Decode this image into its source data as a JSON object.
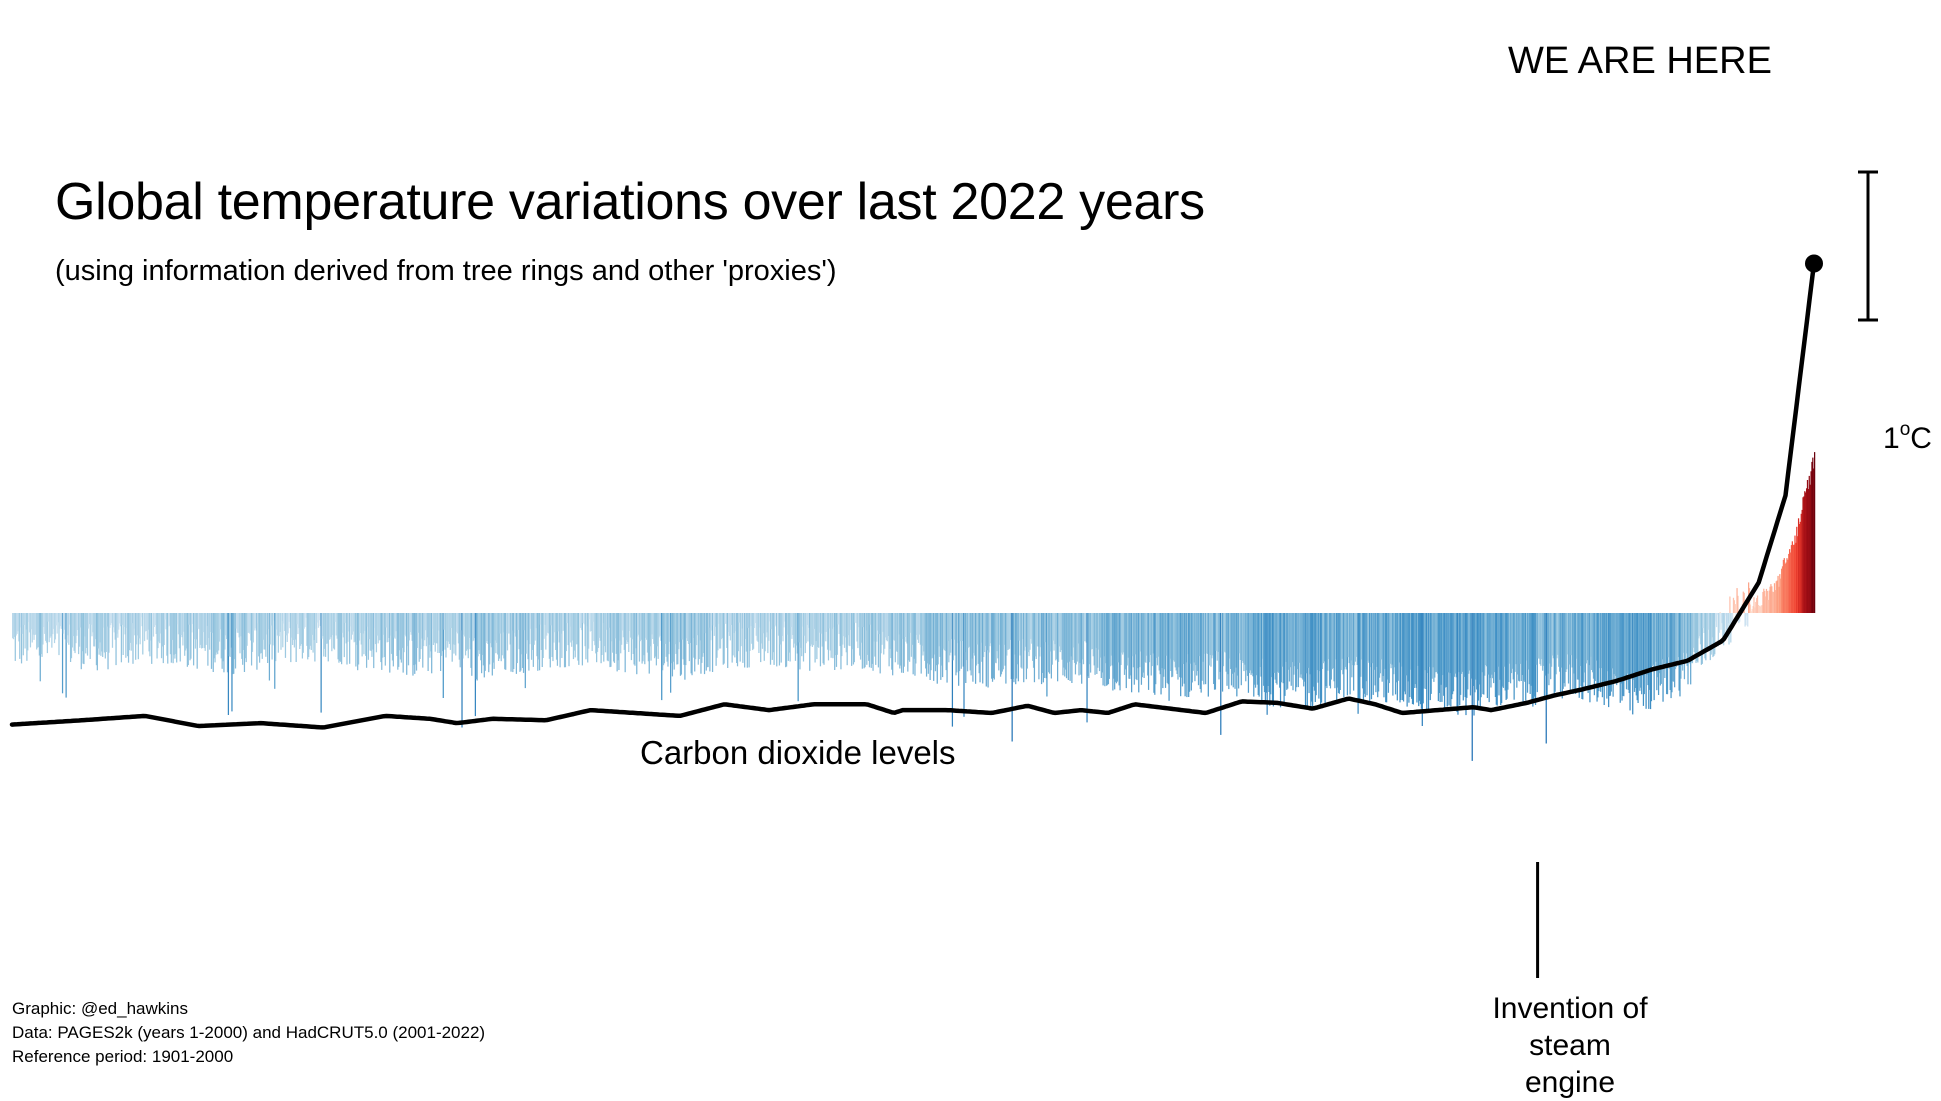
{
  "chart_data": {
    "type": "bar",
    "title": "Global temperature variations over last 2022 years",
    "subtitle": "(using information derived from tree rings and other 'proxies')",
    "x_range": [
      1,
      2022
    ],
    "reference_period": "1901-2000",
    "scale_bar": {
      "value": 1,
      "unit_label": "1",
      "unit_suffix": "C"
    },
    "temperature_anomaly_series": {
      "description": "annual global temperature anomaly (°C) relative to 1901-2000, sampled keyframes",
      "years": [
        1,
        50,
        100,
        150,
        200,
        250,
        300,
        350,
        400,
        450,
        500,
        530,
        550,
        600,
        650,
        700,
        750,
        800,
        850,
        900,
        950,
        1000,
        1050,
        1100,
        1150,
        1200,
        1250,
        1300,
        1350,
        1400,
        1450,
        1500,
        1550,
        1600,
        1640,
        1650,
        1700,
        1750,
        1800,
        1815,
        1850,
        1880,
        1900,
        1920,
        1940,
        1960,
        1980,
        1990,
        2000,
        2010,
        2022
      ],
      "values": [
        -0.22,
        -0.2,
        -0.24,
        -0.18,
        -0.22,
        -0.26,
        -0.2,
        -0.17,
        -0.22,
        -0.28,
        -0.23,
        -0.35,
        -0.28,
        -0.22,
        -0.2,
        -0.26,
        -0.3,
        -0.22,
        -0.2,
        -0.24,
        -0.22,
        -0.28,
        -0.33,
        -0.35,
        -0.32,
        -0.34,
        -0.4,
        -0.44,
        -0.4,
        -0.46,
        -0.5,
        -0.43,
        -0.48,
        -0.52,
        -0.55,
        -0.5,
        -0.48,
        -0.42,
        -0.5,
        -0.58,
        -0.46,
        -0.38,
        -0.22,
        -0.1,
        0.05,
        0.08,
        0.2,
        0.35,
        0.5,
        0.75,
        1.05
      ]
    },
    "co2_curve": {
      "label": "Carbon dioxide levels",
      "unit": "relative",
      "years": [
        1,
        80,
        150,
        210,
        280,
        350,
        420,
        470,
        500,
        540,
        600,
        650,
        700,
        750,
        800,
        850,
        900,
        930,
        960,
        990,
        1000,
        1050,
        1100,
        1140,
        1170,
        1200,
        1230,
        1260,
        1300,
        1340,
        1380,
        1420,
        1460,
        1500,
        1530,
        1560,
        1600,
        1640,
        1660,
        1700,
        1730,
        1760,
        1800,
        1840,
        1880,
        1920,
        1960,
        1990,
        2010,
        2022
      ],
      "values": [
        0.52,
        0.55,
        0.58,
        0.51,
        0.53,
        0.5,
        0.58,
        0.56,
        0.53,
        0.56,
        0.55,
        0.62,
        0.6,
        0.58,
        0.66,
        0.62,
        0.66,
        0.66,
        0.66,
        0.6,
        0.62,
        0.62,
        0.6,
        0.65,
        0.6,
        0.62,
        0.6,
        0.66,
        0.63,
        0.6,
        0.68,
        0.67,
        0.63,
        0.7,
        0.66,
        0.6,
        0.62,
        0.64,
        0.62,
        0.67,
        0.72,
        0.76,
        0.82,
        0.9,
        0.96,
        1.1,
        1.5,
        2.1,
        3.1,
        3.7
      ]
    },
    "annotations": [
      {
        "text": "WE ARE HERE",
        "year": 2022
      },
      {
        "text": "Carbon dioxide levels"
      },
      {
        "text_lines": [
          "Invention of",
          "steam engine"
        ],
        "year": 1712
      }
    ],
    "colors": {
      "cold_light": "#c6dbef",
      "cold_mid": "#6baed6",
      "cold_dark": "#2171b5",
      "warm_light": "#fcbba1",
      "warm_mid": "#ef3b2c",
      "warm_dark": "#99000d",
      "line": "#000000"
    }
  },
  "labels": {
    "title": "Global temperature variations over last 2022 years",
    "subtitle": "(using information derived from tree rings and other 'proxies')",
    "we_are_here": "WE ARE HERE",
    "co2": "Carbon dioxide levels",
    "steam_line1": "Invention of",
    "steam_line2": "steam engine",
    "scale_number": "1",
    "scale_degree": "o",
    "scale_unit": "C"
  },
  "credits": {
    "graphic": "Graphic: @ed_hawkins",
    "data": "Data: PAGES2k (years 1-2000) and HadCRUT5.0 (2001-2022)",
    "reference": "Reference period: 1901-2000"
  }
}
